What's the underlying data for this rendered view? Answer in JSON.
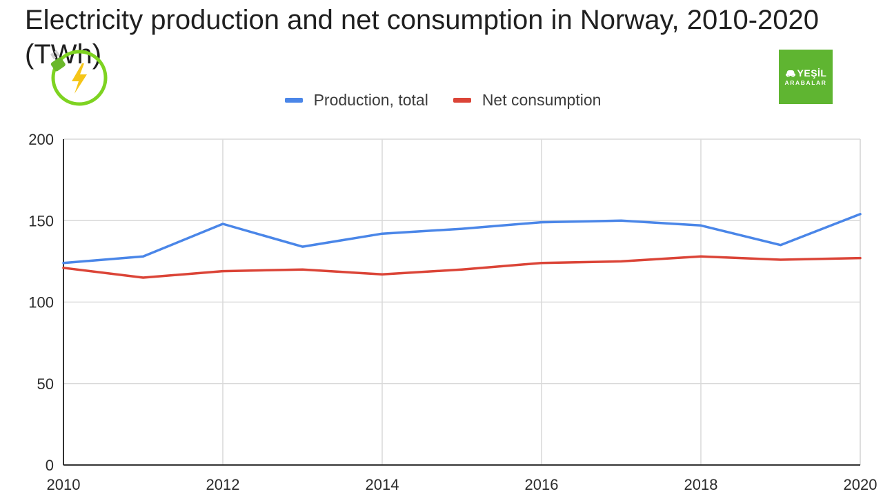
{
  "chart_data": {
    "type": "line",
    "title": "Electricity production and net consumption in Norway, 2010-2020 (TWh)",
    "xlabel": "",
    "ylabel": "",
    "x": [
      2010,
      2011,
      2012,
      2013,
      2014,
      2015,
      2016,
      2017,
      2018,
      2019,
      2020
    ],
    "x_ticks": [
      "2010",
      "2012",
      "2014",
      "2016",
      "2018",
      "2020"
    ],
    "y_ticks": [
      "0",
      "50",
      "100",
      "150",
      "200"
    ],
    "xlim": [
      2010,
      2020
    ],
    "ylim": [
      0,
      200
    ],
    "grid": true,
    "legend_position": "top-center",
    "series": [
      {
        "name": "Production, total",
        "color": "#4a86e8",
        "values": [
          124,
          128,
          148,
          134,
          142,
          145,
          149,
          150,
          147,
          135,
          154
        ]
      },
      {
        "name": "Net consumption",
        "color": "#db4437",
        "values": [
          121,
          115,
          119,
          120,
          117,
          120,
          124,
          125,
          128,
          126,
          127
        ]
      }
    ]
  },
  "logo": {
    "top_text": "YEŞİL",
    "bottom_text": "ARABALAR",
    "color": "#5fb531",
    "icon": "car-icon"
  },
  "badge_icon": {
    "icon": "electric-plug-lightning-icon",
    "color": "#7ed321"
  }
}
